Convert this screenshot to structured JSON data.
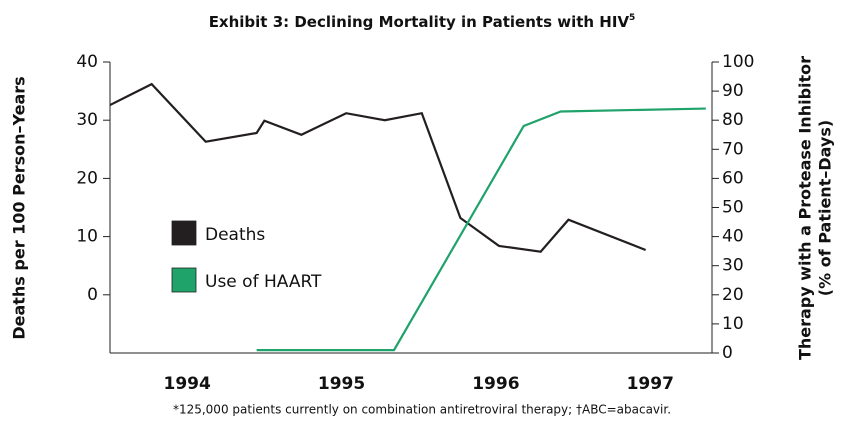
{
  "chart_data": {
    "type": "line",
    "title": "Exhibit 3: Declining Mortality in Patients with HIV",
    "title_superscript": "5",
    "footnote": "*125,000 patients currently on combination antiretroviral therapy; †ABC=abacavir.",
    "ylabel": "Deaths per 100 Person–Years",
    "y2label": [
      "Therapy with a Protease Inhibitor",
      "(% of Patient–Days)"
    ],
    "xlim": [
      1994,
      1997.9
    ],
    "xticks": [
      {
        "value": 1994.5,
        "label": "1994"
      },
      {
        "value": 1995.5,
        "label": "1995"
      },
      {
        "value": 1996.5,
        "label": "1996"
      },
      {
        "value": 1997.5,
        "label": "1997"
      }
    ],
    "ylim": [
      -10,
      40
    ],
    "yticks": [
      0,
      10,
      20,
      30,
      40
    ],
    "y2lim": [
      0,
      100
    ],
    "y2ticks": [
      0,
      10,
      20,
      30,
      40,
      50,
      60,
      70,
      80,
      90,
      100
    ],
    "series": [
      {
        "name": "Deaths",
        "color": "#231f20",
        "x": [
          1994,
          1994.27,
          1994.62,
          1994.95,
          1995,
          1995.24,
          1995.53,
          1995.78,
          1996.02,
          1996.27,
          1996.52,
          1996.79,
          1996.97,
          1997.47
        ],
        "values": [
          32.6,
          36.2,
          26.3,
          27.8,
          29.9,
          27.5,
          31.2,
          30,
          31.2,
          13.2,
          8.4,
          7.4,
          12.9,
          7.7
        ]
      },
      {
        "name": "Use of HAART",
        "color": "#1fa36a",
        "axis": "y2",
        "x": [
          1994.95,
          1995.84,
          1996.68,
          1996.92,
          1997.86
        ],
        "values": [
          1,
          1,
          78,
          83,
          84
        ]
      }
    ]
  }
}
